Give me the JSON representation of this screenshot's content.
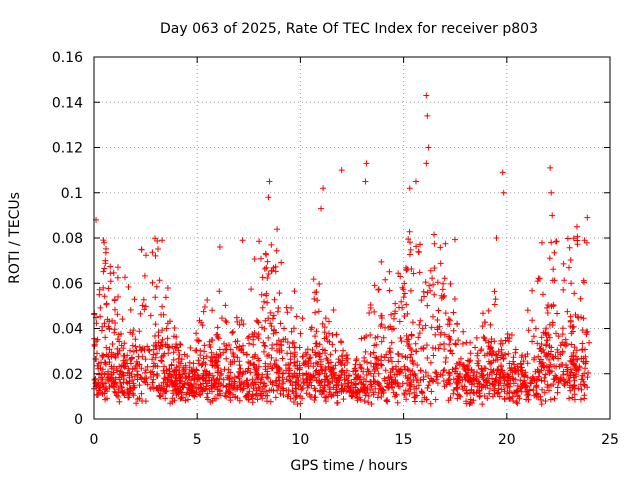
{
  "chart_data": {
    "type": "scatter",
    "title": "Day 063 of 2025, Rate Of TEC Index for receiver p803",
    "xlabel": "GPS time / hours",
    "ylabel": "ROTI / TECUs",
    "xlim": [
      0,
      25
    ],
    "ylim": [
      0,
      0.16
    ],
    "xticks": [
      "0",
      "5",
      "10",
      "15",
      "20",
      "25"
    ],
    "yticks": [
      "0",
      "0.02",
      "0.04",
      "0.06",
      "0.08",
      "0.1",
      "0.12",
      "0.14",
      "0.16"
    ],
    "grid": true,
    "marker": "plus",
    "color": "#ff0000",
    "data_range_hours": [
      0,
      24
    ],
    "baseline_roti": 0.018,
    "notable_peaks": [
      {
        "x": 0.1,
        "y": 0.088
      },
      {
        "x": 0.55,
        "y": 0.07
      },
      {
        "x": 2.3,
        "y": 0.075
      },
      {
        "x": 3.3,
        "y": 0.079
      },
      {
        "x": 6.1,
        "y": 0.076
      },
      {
        "x": 7.2,
        "y": 0.079
      },
      {
        "x": 8.5,
        "y": 0.105
      },
      {
        "x": 8.45,
        "y": 0.098
      },
      {
        "x": 11.1,
        "y": 0.102
      },
      {
        "x": 11.0,
        "y": 0.093
      },
      {
        "x": 12.0,
        "y": 0.11
      },
      {
        "x": 13.2,
        "y": 0.113
      },
      {
        "x": 13.15,
        "y": 0.105
      },
      {
        "x": 15.3,
        "y": 0.102
      },
      {
        "x": 15.6,
        "y": 0.105
      },
      {
        "x": 16.1,
        "y": 0.143
      },
      {
        "x": 16.15,
        "y": 0.134
      },
      {
        "x": 16.2,
        "y": 0.12
      },
      {
        "x": 16.1,
        "y": 0.113
      },
      {
        "x": 19.5,
        "y": 0.08
      },
      {
        "x": 19.8,
        "y": 0.109
      },
      {
        "x": 19.85,
        "y": 0.1
      },
      {
        "x": 22.1,
        "y": 0.111
      },
      {
        "x": 22.15,
        "y": 0.1
      },
      {
        "x": 22.2,
        "y": 0.09
      },
      {
        "x": 23.4,
        "y": 0.085
      },
      {
        "x": 23.9,
        "y": 0.089
      }
    ]
  }
}
